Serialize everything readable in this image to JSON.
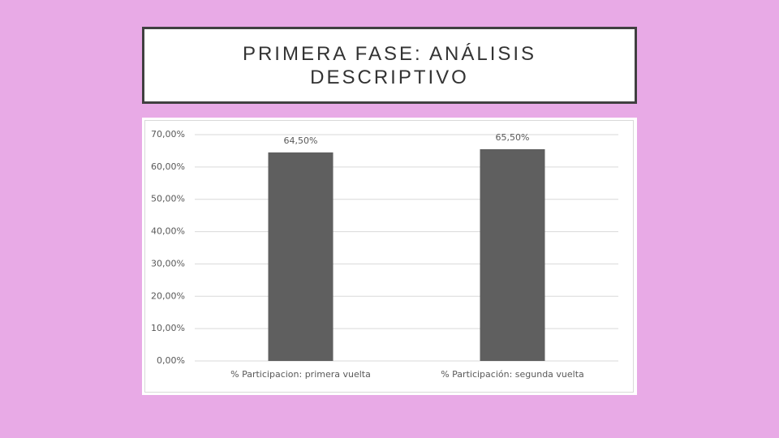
{
  "slide": {
    "title": "PRIMERA FASE: ANÁLISIS DESCRIPTIVO"
  },
  "chart_data": {
    "type": "bar",
    "categories": [
      "% Participacion: primera vuelta",
      "% Participación: segunda vuelta"
    ],
    "values": [
      64.5,
      65.5
    ],
    "value_labels": [
      "64,50%",
      "65,50%"
    ],
    "color": "#5f5f5f",
    "ylim": [
      0,
      70
    ],
    "yticks": [
      {
        "value": 0,
        "label": "0,00%"
      },
      {
        "value": 10,
        "label": "10,00%"
      },
      {
        "value": 20,
        "label": "20,00%"
      },
      {
        "value": 30,
        "label": "30,00%"
      },
      {
        "value": 40,
        "label": "40,00%"
      },
      {
        "value": 50,
        "label": "50,00%"
      },
      {
        "value": 60,
        "label": "60,00%"
      },
      {
        "value": 70,
        "label": "70,00%"
      }
    ],
    "grid": true
  }
}
